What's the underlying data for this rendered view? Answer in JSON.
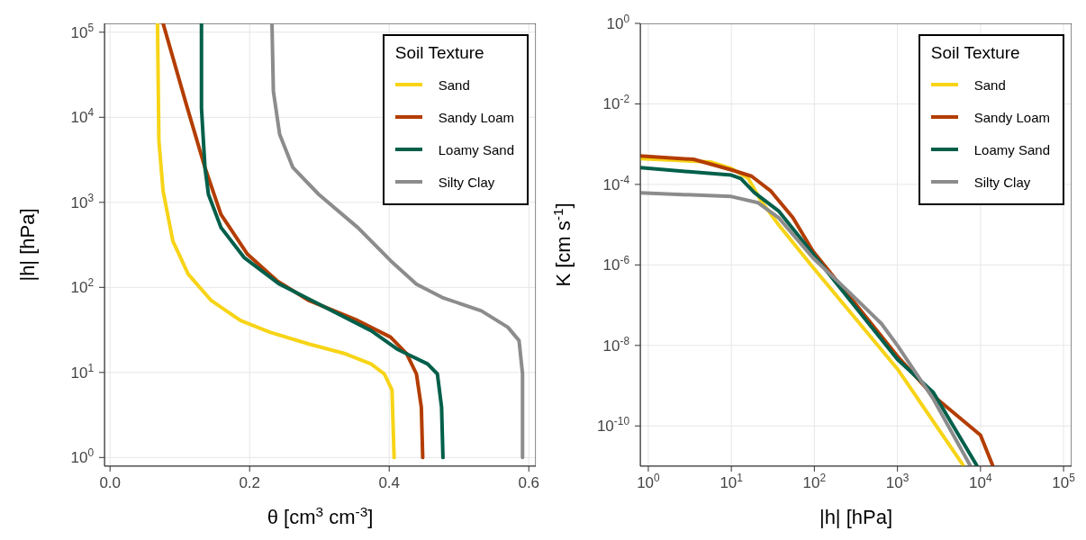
{
  "chart_data": [
    {
      "type": "line",
      "xlabel": "θ [cm$^{3}$ cm$^{-3}$]",
      "ylabel": "|h| [hPa]",
      "legend_title": "Soil Texture",
      "legend": "top right",
      "grid": true,
      "log": "y",
      "xlim": [
        -0.008,
        0.61
      ],
      "xticks": [
        {
          "value": 0,
          "label": "0.0"
        },
        0.2,
        0.4,
        0.6
      ],
      "ylim": [
        0.79,
        127000
      ],
      "yticks": [
        {
          "value": 1,
          "label": "10$^{0}$"
        },
        {
          "value": 10,
          "label": "10$^{1}$"
        },
        {
          "value": 100,
          "label": "10$^{2}$"
        },
        {
          "value": 1000,
          "label": "10$^{3}$"
        },
        {
          "value": 10000,
          "label": "10$^{4}$"
        },
        {
          "value": 100000,
          "label": "10$^{5}$"
        }
      ],
      "series": [
        {
          "name": "Sand",
          "color": "#f7d417",
          "x": [
            0.407,
            0.404,
            0.393,
            0.374,
            0.337,
            0.285,
            0.229,
            0.187,
            0.145,
            0.112,
            0.09,
            0.076,
            0.07,
            0.068
          ],
          "values": [
            1,
            6.2,
            9.6,
            12.6,
            16.6,
            21.6,
            29.7,
            40.7,
            70,
            143,
            350,
            1360,
            5300,
            127000
          ]
        },
        {
          "name": "Sandy Loam",
          "color": "#b33d00",
          "x": [
            0.448,
            0.446,
            0.439,
            0.425,
            0.402,
            0.355,
            0.285,
            0.239,
            0.197,
            0.159,
            0.136,
            0.108,
            0.076
          ],
          "values": [
            1,
            3.9,
            9.6,
            16.6,
            26,
            40.7,
            70,
            120,
            245,
            720,
            2560,
            15400,
            127000
          ]
        },
        {
          "name": "Loamy Sand",
          "color": "#005f4a",
          "x": [
            0.477,
            0.475,
            0.469,
            0.455,
            0.43,
            0.411,
            0.374,
            0.309,
            0.243,
            0.192,
            0.159,
            0.141,
            0.136,
            0.131,
            0.131
          ],
          "values": [
            1,
            3.9,
            9.6,
            12.6,
            15.8,
            18.9,
            31,
            58,
            109,
            225,
            505,
            1240,
            2560,
            12800,
            127000
          ]
        },
        {
          "name": "Silty Clay",
          "color": "#8c8c8c",
          "x": [
            0.591,
            0.591,
            0.586,
            0.57,
            0.532,
            0.476,
            0.439,
            0.402,
            0.355,
            0.299,
            0.262,
            0.243,
            0.234,
            0.232
          ],
          "values": [
            1,
            9.6,
            23.7,
            34,
            53,
            76,
            109,
            206,
            505,
            1240,
            2560,
            6300,
            20300,
            127000
          ]
        }
      ]
    },
    {
      "type": "line",
      "xlabel": "|h| [hPa]",
      "ylabel": "K [cm s$^{-1}$]",
      "legend_title": "Soil Texture",
      "legend": "top right",
      "grid": true,
      "log": "xy",
      "xlim": [
        0.8,
        125000
      ],
      "xticks": [
        {
          "value": 1,
          "label": "10$^{0}$"
        },
        {
          "value": 10,
          "label": "10$^{1}$"
        },
        {
          "value": 100,
          "label": "10$^{2}$"
        },
        {
          "value": 1000,
          "label": "10$^{3}$"
        },
        {
          "value": 10000,
          "label": "10$^{4}$"
        },
        {
          "value": 100000,
          "label": "10$^{5}$"
        }
      ],
      "ylim": [
        1e-11,
        1
      ],
      "yticks": [
        {
          "value": 1,
          "label": "10$^{0}$"
        },
        {
          "value": 0.01,
          "label": "10$^{-2}$"
        },
        {
          "value": 0.0001,
          "label": "10$^{-4}$"
        },
        {
          "value": 1e-06,
          "label": "10$^{-6}$"
        },
        {
          "value": 1e-08,
          "label": "10$^{-8}$"
        },
        {
          "value": 1e-10,
          "label": "10$^{-10}$"
        }
      ],
      "series": [
        {
          "name": "Sand",
          "color": "#f7d417",
          "x": [
            0.8,
            5.6,
            10,
            16,
            23,
            37,
            96,
            1000,
            6200
          ],
          "values": [
            0.00044,
            0.00036,
            0.00025,
            0.00014,
            3.8e-05,
            1e-05,
            8.7e-07,
            2.6e-09,
            1.05e-11
          ]
        },
        {
          "name": "Sandy Loam",
          "color": "#b33d00",
          "x": [
            0.8,
            3.5,
            10,
            17.5,
            30,
            55,
            96,
            250,
            1000,
            2700,
            10000,
            14000
          ],
          "values": [
            0.00051,
            0.00042,
            0.00023,
            0.00016,
            6.8e-05,
            1.5e-05,
            2.2e-06,
            1.9e-07,
            5.4e-09,
            5.6e-10,
            5.9e-11,
            1.05e-11
          ]
        },
        {
          "name": "Loamy Sand",
          "color": "#005f4a",
          "x": [
            0.8,
            10,
            13,
            19,
            37,
            96,
            250,
            1000,
            2700,
            9000
          ],
          "values": [
            0.00026,
            0.00017,
            0.00014,
            6.2e-05,
            2.2e-05,
            1.9e-06,
            1.6e-07,
            4.5e-09,
            6.8e-10,
            1.05e-11
          ]
        },
        {
          "name": "Silty Clay",
          "color": "#8c8c8c",
          "x": [
            0.8,
            10,
            21,
            37,
            96,
            250,
            640,
            1000,
            2700,
            7500
          ],
          "values": [
            6.2e-05,
            5e-05,
            3.5e-05,
            1.5e-05,
            1.5e-06,
            2.3e-07,
            3.5e-08,
            1e-08,
            4.7e-10,
            1.05e-11
          ]
        }
      ]
    }
  ]
}
